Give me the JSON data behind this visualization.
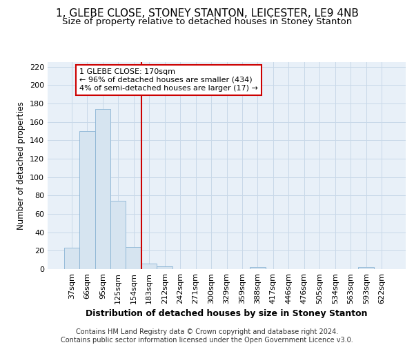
{
  "title1": "1, GLEBE CLOSE, STONEY STANTON, LEICESTER, LE9 4NB",
  "title2": "Size of property relative to detached houses in Stoney Stanton",
  "xlabel": "Distribution of detached houses by size in Stoney Stanton",
  "ylabel": "Number of detached properties",
  "categories": [
    "37sqm",
    "66sqm",
    "95sqm",
    "125sqm",
    "154sqm",
    "183sqm",
    "212sqm",
    "242sqm",
    "271sqm",
    "300sqm",
    "329sqm",
    "359sqm",
    "388sqm",
    "417sqm",
    "446sqm",
    "476sqm",
    "505sqm",
    "534sqm",
    "563sqm",
    "593sqm",
    "622sqm"
  ],
  "values": [
    23,
    150,
    174,
    74,
    24,
    6,
    3,
    0,
    0,
    0,
    0,
    0,
    2,
    0,
    0,
    0,
    0,
    0,
    0,
    2,
    0
  ],
  "bar_color": "#d6e4f0",
  "bar_edge_color": "#8ab4d4",
  "vline_x": 4.5,
  "vline_color": "#cc0000",
  "annotation_text": "1 GLEBE CLOSE: 170sqm\n← 96% of detached houses are smaller (434)\n4% of semi-detached houses are larger (17) →",
  "annotation_box_color": "#ffffff",
  "annotation_box_edge": "#cc0000",
  "footer": "Contains HM Land Registry data © Crown copyright and database right 2024.\nContains public sector information licensed under the Open Government Licence v3.0.",
  "ylim": [
    0,
    225
  ],
  "bg_color": "#e8f0f8",
  "title1_fontsize": 11,
  "title2_fontsize": 9.5,
  "xlabel_fontsize": 9,
  "ylabel_fontsize": 8.5,
  "tick_fontsize": 8,
  "annot_fontsize": 8,
  "footer_fontsize": 7,
  "grid_color": "#c8d8e8"
}
